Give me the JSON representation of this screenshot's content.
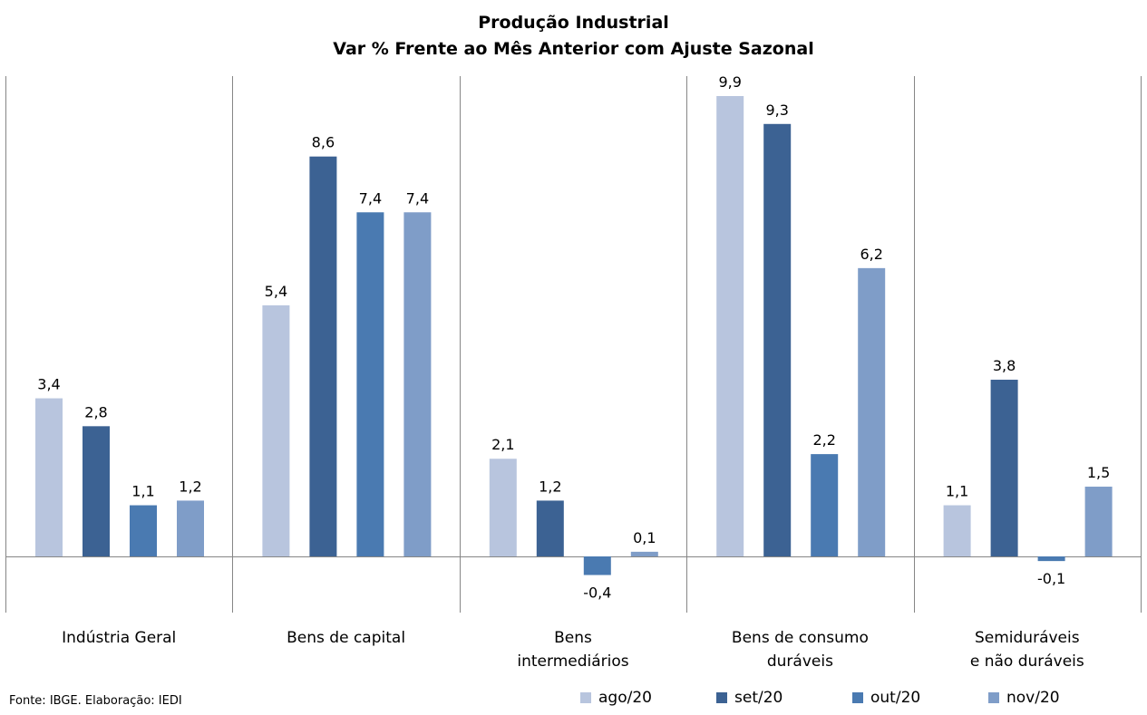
{
  "title": "Produção Industrial",
  "subtitle": "Var % Frente ao Mês Anterior com Ajuste Sazonal",
  "source": "Fonte: IBGE. Elaboração: IEDI",
  "colors": {
    "ago/20": "#b8c5de",
    "set/20": "#3c6293",
    "out/20": "#4a7ab1",
    "nov/20": "#7f9dc8",
    "axis": "#868686"
  },
  "chart_data": {
    "type": "bar",
    "title": "Produção Industrial",
    "subtitle": "Var % Frente ao Mês Anterior com Ajuste Sazonal",
    "categories": [
      [
        "Indústria Geral"
      ],
      [
        "Bens de capital"
      ],
      [
        "Bens",
        "intermediários"
      ],
      [
        "Bens de consumo",
        "duráveis"
      ],
      [
        "Semiduráveis",
        "e não duráveis"
      ]
    ],
    "series": [
      {
        "name": "ago/20",
        "values": [
          3.4,
          5.4,
          2.1,
          9.9,
          1.1
        ],
        "labels": [
          "3,4",
          "5,4",
          "2,1",
          "9,9",
          "1,1"
        ]
      },
      {
        "name": "set/20",
        "values": [
          2.8,
          8.6,
          1.2,
          9.3,
          3.8
        ],
        "labels": [
          "2,8",
          "8,6",
          "1,2",
          "9,3",
          "3,8"
        ]
      },
      {
        "name": "out/20",
        "values": [
          1.1,
          7.4,
          -0.4,
          2.2,
          -0.1
        ],
        "labels": [
          "1,1",
          "7,4",
          "-0,4",
          "2,2",
          "-0,1"
        ]
      },
      {
        "name": "nov/20",
        "values": [
          1.2,
          7.4,
          0.1,
          6.2,
          1.5
        ],
        "labels": [
          "1,2",
          "7,4",
          "0,1",
          "6,2",
          "1,5"
        ]
      }
    ],
    "ylim": [
      -1.2,
      10.5
    ],
    "grid": false,
    "legend_position": "bottom-right"
  }
}
